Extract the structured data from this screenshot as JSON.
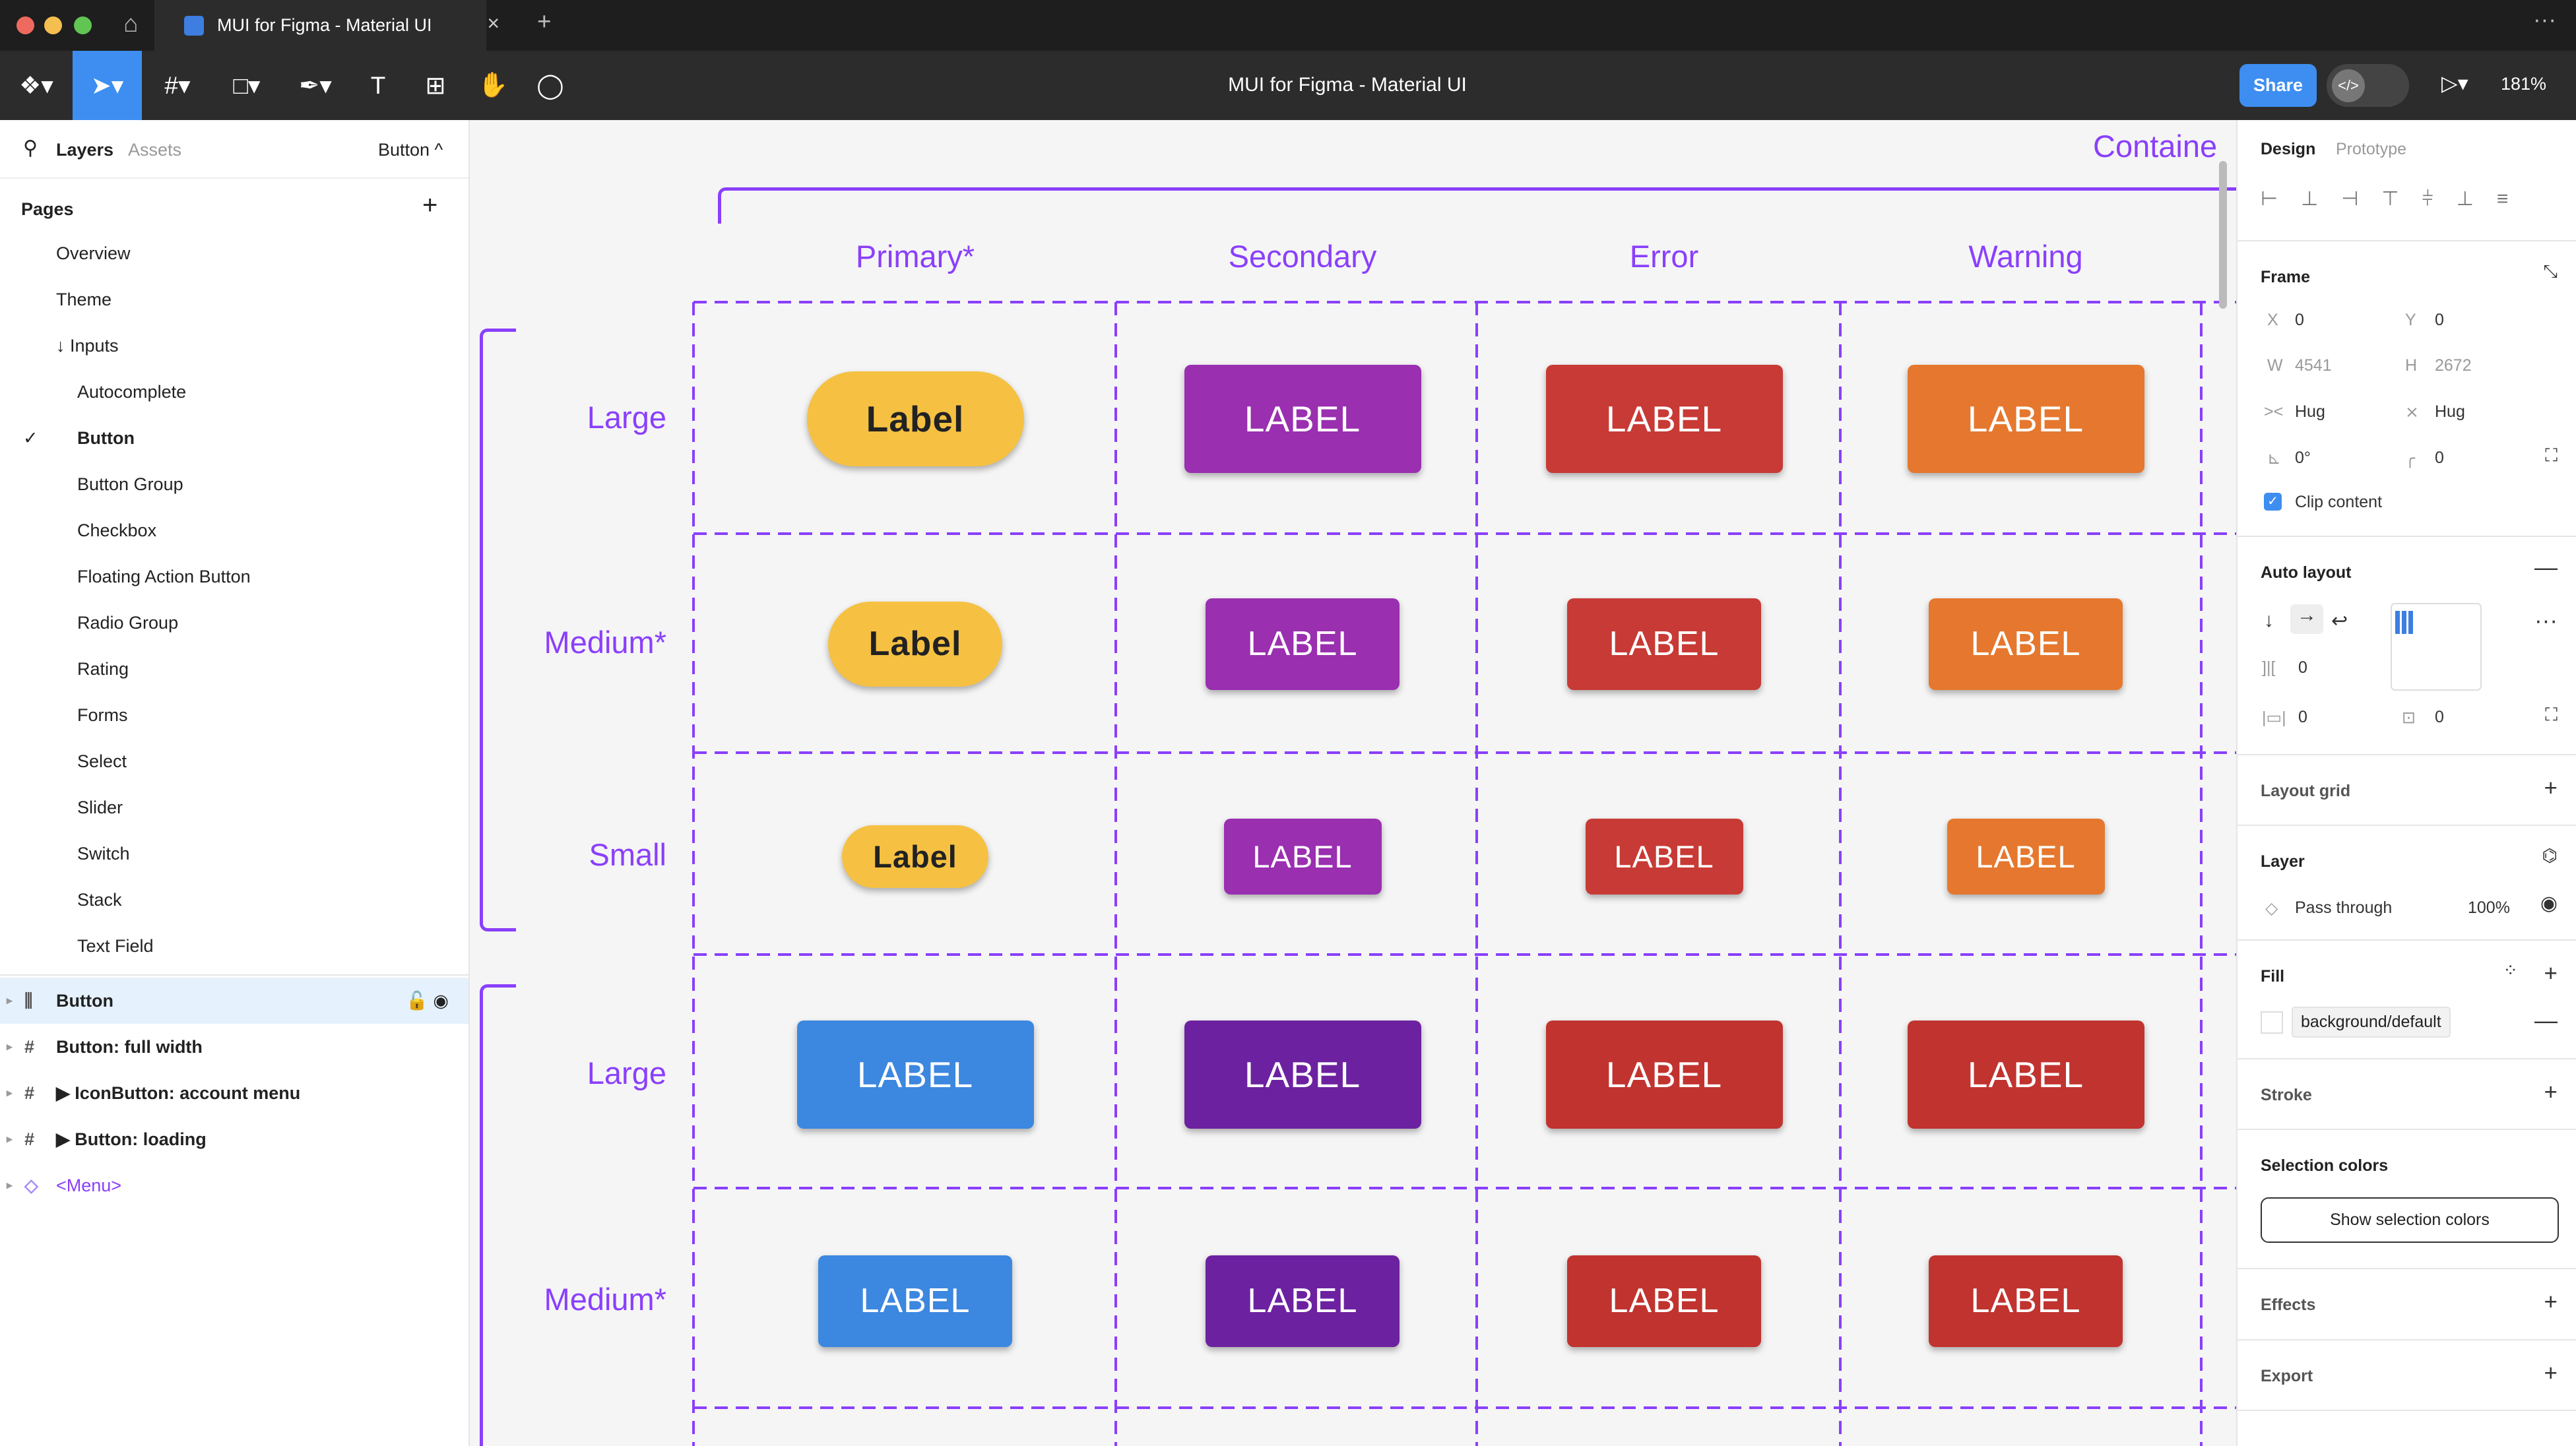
{
  "browser": {
    "tab_title": "MUI for Figma - Material UI",
    "new_tab": "+",
    "close": "×"
  },
  "toolbar": {
    "title": "MUI for Figma - Material UI",
    "share": "Share",
    "zoom": "181%"
  },
  "left_panel": {
    "tabs": [
      "Layers",
      "Assets"
    ],
    "current_page": "Button ^",
    "pages_header": "Pages",
    "pages": [
      {
        "label": "Overview",
        "indent": 0
      },
      {
        "label": "Theme",
        "indent": 0
      },
      {
        "label": "↓ Inputs",
        "indent": 0
      },
      {
        "label": "Autocomplete",
        "indent": 1
      },
      {
        "label": "Button",
        "indent": 1,
        "selected": true
      },
      {
        "label": "Button Group",
        "indent": 1
      },
      {
        "label": "Checkbox",
        "indent": 1
      },
      {
        "label": "Floating Action Button",
        "indent": 1
      },
      {
        "label": "Radio Group",
        "indent": 1
      },
      {
        "label": "Rating",
        "indent": 1
      },
      {
        "label": "Forms",
        "indent": 1
      },
      {
        "label": "Select",
        "indent": 1
      },
      {
        "label": "Slider",
        "indent": 1
      },
      {
        "label": "Switch",
        "indent": 1
      },
      {
        "label": "Stack",
        "indent": 1
      },
      {
        "label": "Text Field",
        "indent": 1
      }
    ],
    "layers": [
      {
        "label": "Button",
        "icon": "auto-layout-icon",
        "selected": true
      },
      {
        "label": "Button: full width",
        "icon": "frame-icon"
      },
      {
        "label": "▶ IconButton: account menu",
        "icon": "frame-icon"
      },
      {
        "label": "▶ Button: loading",
        "icon": "frame-icon"
      },
      {
        "label": "<Menu>",
        "icon": "component-icon",
        "purple": true
      }
    ]
  },
  "canvas": {
    "section_title": "Containe",
    "columns": [
      "Primary*",
      "Secondary",
      "Error",
      "Warning"
    ],
    "rows": [
      "Large",
      "Medium*",
      "Small",
      "Large",
      "Medium*"
    ],
    "grid": [
      [
        {
          "t": "Label",
          "c": "#F6C142",
          "pill": true
        },
        {
          "t": "LABEL",
          "c": "#9A2FB0"
        },
        {
          "t": "LABEL",
          "c": "#C83A35"
        },
        {
          "t": "LABEL",
          "c": "#E5782E"
        }
      ],
      [
        {
          "t": "Label",
          "c": "#F6C142",
          "pill": true
        },
        {
          "t": "LABEL",
          "c": "#9A2FB0"
        },
        {
          "t": "LABEL",
          "c": "#C83A35"
        },
        {
          "t": "LABEL",
          "c": "#E5782E"
        }
      ],
      [
        {
          "t": "Label",
          "c": "#F6C142",
          "pill": true
        },
        {
          "t": "LABEL",
          "c": "#9A2FB0"
        },
        {
          "t": "LABEL",
          "c": "#C83A35"
        },
        {
          "t": "LABEL",
          "c": "#E5782E"
        }
      ],
      [
        {
          "t": "LABEL",
          "c": "#3C87E0"
        },
        {
          "t": "LABEL",
          "c": "#6C22A0"
        },
        {
          "t": "LABEL",
          "c": "#C1332F"
        },
        {
          "t": "LABEL",
          "c": "#C1332F"
        }
      ],
      [
        {
          "t": "LABEL",
          "c": "#3C87E0"
        },
        {
          "t": "LABEL",
          "c": "#6C22A0"
        },
        {
          "t": "LABEL",
          "c": "#C1332F"
        },
        {
          "t": "LABEL",
          "c": "#C1332F"
        }
      ]
    ],
    "accent": "#8A3FFC"
  },
  "right_panel": {
    "tabs": [
      "Design",
      "Prototype"
    ],
    "frame": {
      "title": "Frame",
      "x_label": "X",
      "x": "0",
      "y_label": "Y",
      "y": "0",
      "w_label": "W",
      "w": "4541",
      "h_label": "H",
      "h": "2672",
      "width_mode": "Hug",
      "height_mode": "Hug",
      "rotation": "0°",
      "radius": "0",
      "clip": "Clip content"
    },
    "auto_layout": {
      "title": "Auto layout",
      "gap": "0",
      "padding_h": "0",
      "padding_v": "0"
    },
    "layout_grid": "Layout grid",
    "layer": {
      "title": "Layer",
      "blend": "Pass through",
      "opacity": "100%"
    },
    "fill": {
      "title": "Fill",
      "style": "background/default"
    },
    "stroke": "Stroke",
    "selection_colors": {
      "title": "Selection colors",
      "button": "Show selection colors"
    },
    "effects": "Effects",
    "export": "Export"
  }
}
